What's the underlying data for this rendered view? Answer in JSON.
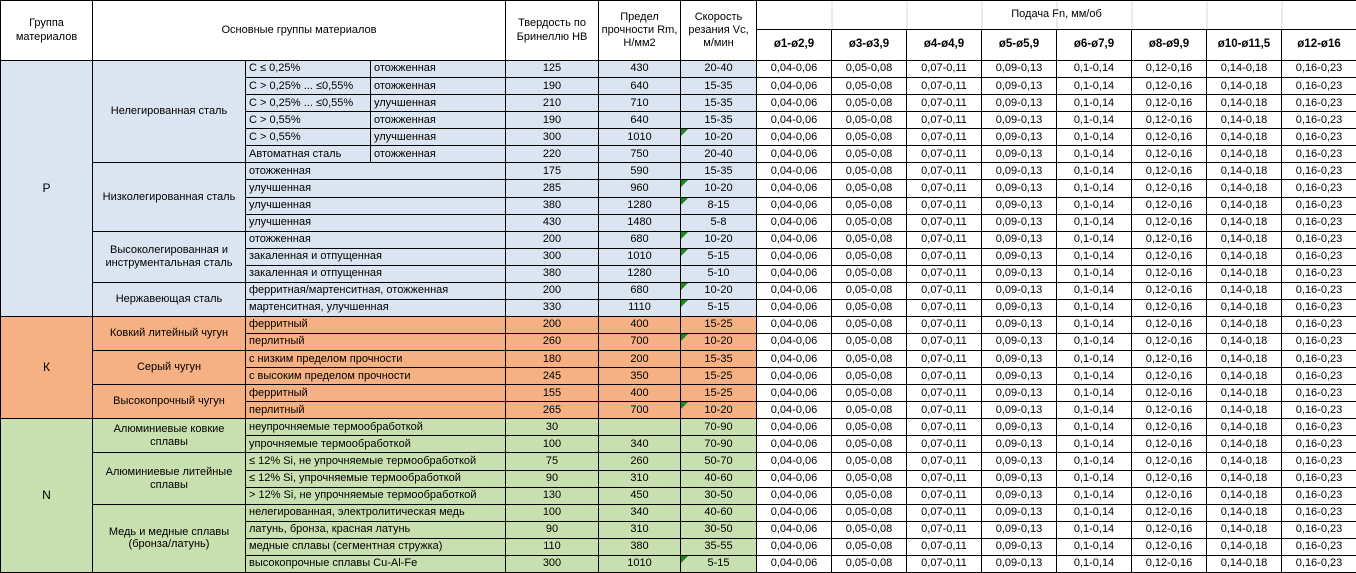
{
  "header": {
    "col_group": "Группа материалов",
    "col_main": "Основные группы материалов",
    "col_hb": "Твердость по Бринеллю HB",
    "col_rm": "Предел прочности Rm, Н/мм2",
    "col_vc": "Скорость резания Vc, м/мин",
    "feed_title": "Подача Fn, мм/об",
    "feed_cols": [
      "ø1-ø2,9",
      "ø3-ø3,9",
      "ø4-ø4,9",
      "ø5-ø5,9",
      "ø6-ø7,9",
      "ø8-ø9,9",
      "ø10-ø11,5",
      "ø12-ø16"
    ]
  },
  "feed_values": [
    "0,04-0,06",
    "0,05-0,08",
    "0,07-0,11",
    "0,09-0,13",
    "0,1-0,14",
    "0,12-0,16",
    "0,14-0,18",
    "0,16-0,23"
  ],
  "note_marker_color": "#178a17",
  "groups": [
    {
      "letter": "P",
      "color": "#dbe5f1",
      "families": [
        {
          "name": "Нелегированная сталь",
          "rows": [
            {
              "c1": "C ≤ 0,25%",
              "c2": "отожженная",
              "hb": "125",
              "rm": "430",
              "vc": "20-40",
              "note": false
            },
            {
              "c1": "C > 0,25% ... ≤0,55%",
              "c2": "отожженная",
              "hb": "190",
              "rm": "640",
              "vc": "15-35",
              "note": false
            },
            {
              "c1": "C > 0,25% ... ≤0,55%",
              "c2": "улучшенная",
              "hb": "210",
              "rm": "710",
              "vc": "15-35",
              "note": false
            },
            {
              "c1": "C > 0,55%",
              "c2": "отожженная",
              "hb": "190",
              "rm": "640",
              "vc": "15-35",
              "note": false
            },
            {
              "c1": "C > 0,55%",
              "c2": "улучшенная",
              "hb": "300",
              "rm": "1010",
              "vc": "10-20",
              "note": true
            },
            {
              "c1": "Автоматная сталь",
              "c2": "отожженная",
              "hb": "220",
              "rm": "750",
              "vc": "20-40",
              "note": false
            }
          ]
        },
        {
          "name": "Низколегированная сталь",
          "rows": [
            {
              "c1": "отожженная",
              "hb": "175",
              "rm": "590",
              "vc": "15-35",
              "note": false
            },
            {
              "c1": "улучшенная",
              "hb": "285",
              "rm": "960",
              "vc": "10-20",
              "note": true
            },
            {
              "c1": "улучшенная",
              "hb": "380",
              "rm": "1280",
              "vc": "8-15",
              "note": true
            },
            {
              "c1": "улучшенная",
              "hb": "430",
              "rm": "1480",
              "vc": "5-8",
              "note": false
            }
          ]
        },
        {
          "name": "Высоколегированная и инструментальная сталь",
          "rows": [
            {
              "c1": "отожженная",
              "hb": "200",
              "rm": "680",
              "vc": "10-20",
              "note": true
            },
            {
              "c1": "закаленная и отпущенная",
              "hb": "300",
              "rm": "1010",
              "vc": "5-15",
              "note": true
            },
            {
              "c1": "закаленная и отпущенная",
              "hb": "380",
              "rm": "1280",
              "vc": "5-10",
              "note": false
            }
          ]
        },
        {
          "name": "Нержавеющая сталь",
          "rows": [
            {
              "c1": "ферритная/мартенситная, отожженная",
              "hb": "200",
              "rm": "680",
              "vc": "10-20",
              "note": true
            },
            {
              "c1": "мартенситная, улучшенная",
              "hb": "330",
              "rm": "1110",
              "vc": "5-15",
              "note": true
            }
          ]
        }
      ]
    },
    {
      "letter": "К",
      "color": "#f5b183",
      "families": [
        {
          "name": "Ковкий литейный чугун",
          "rows": [
            {
              "c1": "ферритный",
              "hb": "200",
              "rm": "400",
              "vc": "15-25",
              "note": false
            },
            {
              "c1": "перлитный",
              "hb": "260",
              "rm": "700",
              "vc": "10-20",
              "note": true
            }
          ]
        },
        {
          "name": "Серый чугун",
          "rows": [
            {
              "c1": "с низким пределом прочности",
              "hb": "180",
              "rm": "200",
              "vc": "15-35",
              "note": false
            },
            {
              "c1": "с высоким пределом прочности",
              "hb": "245",
              "rm": "350",
              "vc": "15-25",
              "note": false
            }
          ]
        },
        {
          "name": "Высокопрочный чугун",
          "rows": [
            {
              "c1": "ферритный",
              "hb": "155",
              "rm": "400",
              "vc": "15-25",
              "note": false
            },
            {
              "c1": "перлитный",
              "hb": "265",
              "rm": "700",
              "vc": "10-20",
              "note": true
            }
          ]
        }
      ]
    },
    {
      "letter": "N",
      "color": "#c8dfb0",
      "families": [
        {
          "name": "Алюминиевые ковкие сплавы",
          "rows": [
            {
              "c1": "неупрочняемые термообработкой",
              "hb": "30",
              "rm": "",
              "vc": "70-90",
              "note": false
            },
            {
              "c1": "упрочняемые термообработкой",
              "hb": "100",
              "rm": "340",
              "vc": "70-90",
              "note": false
            }
          ]
        },
        {
          "name": "Алюминиевые литейные сплавы",
          "rows": [
            {
              "c1": "≤ 12% Si, не упрочняемые термообработкой",
              "hb": "75",
              "rm": "260",
              "vc": "50-70",
              "note": false
            },
            {
              "c1": "≤ 12% Si, упрочняемые термообработкой",
              "hb": "90",
              "rm": "310",
              "vc": "40-60",
              "note": false
            },
            {
              "c1": "> 12% Si, не упрочняемые термообработкой",
              "hb": "130",
              "rm": "450",
              "vc": "30-50",
              "note": false
            }
          ]
        },
        {
          "name": "Медь и медные сплавы (бронза/латунь)",
          "rows": [
            {
              "c1": "нелегированная, электролитическая медь",
              "hb": "100",
              "rm": "340",
              "vc": "40-60",
              "note": false
            },
            {
              "c1": "латунь, бронза, красная латунь",
              "hb": "90",
              "rm": "310",
              "vc": "30-50",
              "note": false
            },
            {
              "c1": "медные сплавы (сегментная стружка)",
              "hb": "110",
              "rm": "380",
              "vc": "35-55",
              "note": false
            },
            {
              "c1": "высокопрочные сплавы Cu-Al-Fe",
              "hb": "300",
              "rm": "1010",
              "vc": "5-15",
              "note": true
            }
          ]
        }
      ]
    }
  ]
}
